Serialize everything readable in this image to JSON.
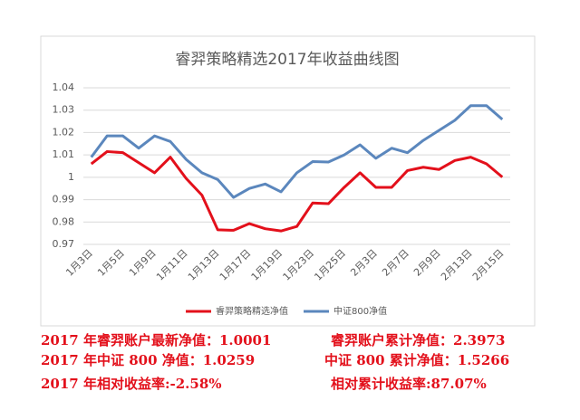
{
  "chart_data": {
    "type": "line",
    "title": "睿羿策略精选2017年收益曲线图",
    "categories": [
      "1月3日",
      null,
      "1月5日",
      null,
      "1月9日",
      null,
      "1月11日",
      null,
      "1月13日",
      null,
      "1月17日",
      null,
      "1月19日",
      null,
      "1月23日",
      null,
      "1月25日",
      null,
      "2月3日",
      null,
      "2月7日",
      null,
      "2月9日",
      null,
      "2月13日",
      null,
      "2月15日"
    ],
    "series": [
      {
        "name": "睿羿策略精选净值",
        "color": "#e3101b",
        "values": [
          1.006,
          1.0115,
          1.011,
          1.0065,
          1.002,
          1.009,
          0.9995,
          0.992,
          0.9765,
          0.9763,
          0.9793,
          0.977,
          0.976,
          0.978,
          0.9885,
          0.9882,
          0.9955,
          1.002,
          0.9955,
          0.9955,
          1.003,
          1.0045,
          1.0035,
          1.0075,
          1.009,
          1.006,
          1.0001
        ]
      },
      {
        "name": "中证800净值",
        "color": "#5b87bd",
        "values": [
          1.009,
          1.0185,
          1.0185,
          1.013,
          1.0185,
          1.016,
          1.008,
          1.002,
          0.999,
          0.991,
          0.995,
          0.997,
          0.9935,
          1.002,
          1.007,
          1.0068,
          1.01,
          1.0145,
          1.0085,
          1.013,
          1.011,
          1.0165,
          1.021,
          1.0255,
          1.032,
          1.032,
          1.0259
        ]
      }
    ],
    "ylim": [
      0.97,
      1.04
    ],
    "yticks": [
      0.97,
      0.98,
      0.99,
      1,
      1.01,
      1.02,
      1.03,
      1.04
    ],
    "grid": true,
    "legend": "bottom"
  },
  "notes": [
    "2017 年睿羿账户最新净值：1.0001",
    "睿羿账户累计净值：2.3973",
    "2017 年中证 800 净值：1.0259",
    "中证 800 累计净值：1.5266",
    "2017 年相对收益率:-2.58%",
    "相对累计收益率:87.07%"
  ]
}
